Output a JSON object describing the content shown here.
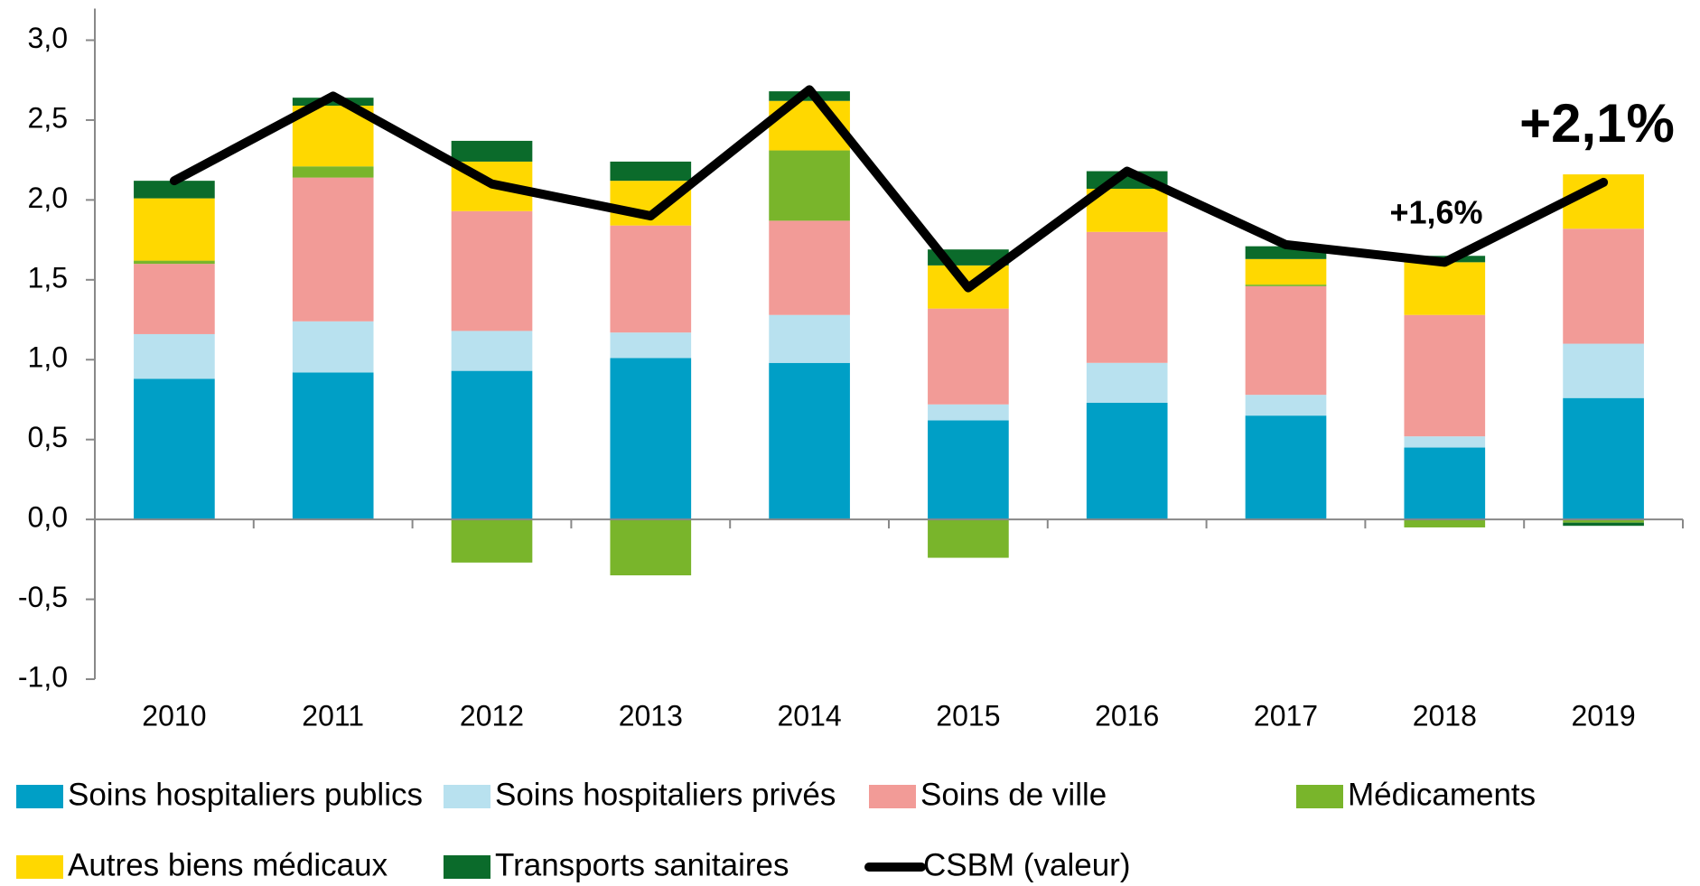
{
  "chart_data": {
    "type": "bar",
    "stacked": true,
    "categories": [
      "2010",
      "2011",
      "2012",
      "2013",
      "2014",
      "2015",
      "2016",
      "2017",
      "2018",
      "2019"
    ],
    "series": [
      {
        "name": "Soins hospitaliers publics",
        "color": "#009fc6",
        "values": [
          0.88,
          0.92,
          0.93,
          1.01,
          0.98,
          0.62,
          0.73,
          0.65,
          0.45,
          0.76
        ]
      },
      {
        "name": "Soins hospitaliers privés",
        "color": "#b8e1ef",
        "values": [
          0.28,
          0.32,
          0.25,
          0.16,
          0.3,
          0.1,
          0.25,
          0.13,
          0.07,
          0.34
        ]
      },
      {
        "name": "Soins de ville",
        "color": "#f29b97",
        "values": [
          0.44,
          0.9,
          0.75,
          0.67,
          0.59,
          0.6,
          0.82,
          0.68,
          0.76,
          0.72
        ]
      },
      {
        "name": "Médicaments",
        "color": "#79b52b",
        "values": [
          0.02,
          0.07,
          -0.27,
          -0.35,
          0.44,
          -0.24,
          0,
          0.01,
          -0.05,
          -0.02
        ]
      },
      {
        "name": "Autres biens médicaux",
        "color": "#ffd800",
        "values": [
          0.39,
          0.38,
          0.31,
          0.28,
          0.31,
          0.27,
          0.27,
          0.16,
          0.33,
          0.34
        ]
      },
      {
        "name": "Transports sanitaires",
        "color": "#0b6b2b",
        "values": [
          0.11,
          0.05,
          0.13,
          0.12,
          0.06,
          0.1,
          0.11,
          0.08,
          0.04,
          -0.02
        ]
      },
      {
        "name": "CSBM (valeur)",
        "color": "#000000",
        "type": "line",
        "values": [
          2.12,
          2.65,
          2.1,
          1.9,
          2.69,
          1.45,
          2.18,
          1.72,
          1.61,
          2.11
        ]
      }
    ],
    "ylim": [
      -1,
      3
    ],
    "yticks": [
      {
        "value": -1,
        "label": "-1,0"
      },
      {
        "value": -0.5,
        "label": "-0,5"
      },
      {
        "value": 0,
        "label": "0,0"
      },
      {
        "value": 0.5,
        "label": "0,5"
      },
      {
        "value": 1,
        "label": "1,0"
      },
      {
        "value": 1.5,
        "label": "1,5"
      },
      {
        "value": 2,
        "label": "2,0"
      },
      {
        "value": 2.5,
        "label": "2,5"
      },
      {
        "value": 3,
        "label": "3,0"
      }
    ],
    "annotations": [
      "+1,6%",
      "+2,1%"
    ],
    "legend": "bottom"
  }
}
